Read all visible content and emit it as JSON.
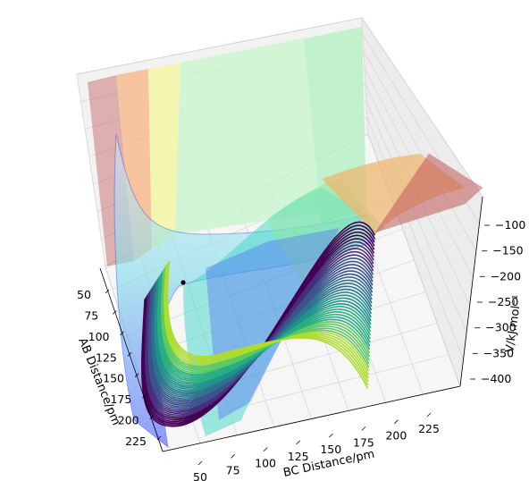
{
  "chart_data": {
    "type": "surface",
    "title": "",
    "x_axis": {
      "label": "BC Distance/pm",
      "ticks": [
        "50",
        "75",
        "100",
        "125",
        "150",
        "175",
        "200",
        "225"
      ],
      "range": [
        40,
        240
      ]
    },
    "y_axis": {
      "label": "AB Distance/pm",
      "ticks": [
        "50",
        "75",
        "100",
        "125",
        "150",
        "175",
        "200",
        "225"
      ],
      "range": [
        40,
        240
      ]
    },
    "z_axis": {
      "label": "V/kJ.mol⁻¹",
      "ticks": [
        "−100",
        "−150",
        "−200",
        "−250",
        "−300",
        "−350",
        "−400"
      ],
      "range": [
        -420,
        -80
      ]
    },
    "grid": true,
    "contour_colormap": "viridis",
    "marked_point": {
      "bc_distance": 50,
      "ab_distance": 74
    },
    "colors": {
      "surface_blue": "#3b4cff",
      "surface_green": "#aef0c0",
      "surface_yellow": "#f4f7a0",
      "surface_orange": "#f9b98c",
      "surface_red": "#c25a5a",
      "pane": "#f2f2f2"
    }
  }
}
